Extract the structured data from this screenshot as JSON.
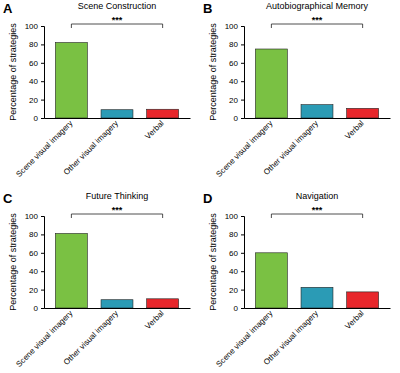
{
  "chart_data": [
    {
      "type": "bar",
      "title": "Scene Construction",
      "ylabel": "Percentage of strategies",
      "categories": [
        "Scene visual imagery",
        "Other visual imagery",
        "Verbal"
      ],
      "values": [
        82,
        9,
        9.5
      ],
      "colors": [
        "#7ac143",
        "#2b9bb5",
        "#e8262b"
      ],
      "ylim": [
        0,
        100
      ],
      "yticks": [
        0,
        20,
        40,
        60,
        80,
        100
      ],
      "annotations": [
        "A",
        "***"
      ]
    },
    {
      "type": "bar",
      "title": "Autobiographical Memory",
      "ylabel": "Percentage of strategies",
      "categories": [
        "Scene visual imagery",
        "Other visual imagery",
        "Verbal"
      ],
      "values": [
        75,
        14.5,
        10.5
      ],
      "colors": [
        "#7ac143",
        "#2b9bb5",
        "#e8262b"
      ],
      "ylim": [
        0,
        100
      ],
      "yticks": [
        0,
        20,
        40,
        60,
        80,
        100
      ],
      "annotations": [
        "B",
        "***"
      ]
    },
    {
      "type": "bar",
      "title": "Future Thinking",
      "ylabel": "Percentage of strategies",
      "categories": [
        "Scene visual imagery",
        "Other visual imagery",
        "Verbal"
      ],
      "values": [
        81,
        9,
        10
      ],
      "colors": [
        "#7ac143",
        "#2b9bb5",
        "#e8262b"
      ],
      "ylim": [
        0,
        100
      ],
      "yticks": [
        0,
        20,
        40,
        60,
        80,
        100
      ],
      "annotations": [
        "C",
        "***"
      ]
    },
    {
      "type": "bar",
      "title": "Navigation",
      "ylabel": "Percentage of strategies",
      "categories": [
        "Scene visual imagery",
        "Other visual imagery",
        "Verbal"
      ],
      "values": [
        60,
        22.5,
        17.5
      ],
      "colors": [
        "#7ac143",
        "#2b9bb5",
        "#e8262b"
      ],
      "ylim": [
        0,
        100
      ],
      "yticks": [
        0,
        20,
        40,
        60,
        80,
        100
      ],
      "annotations": [
        "D",
        "***"
      ]
    }
  ]
}
